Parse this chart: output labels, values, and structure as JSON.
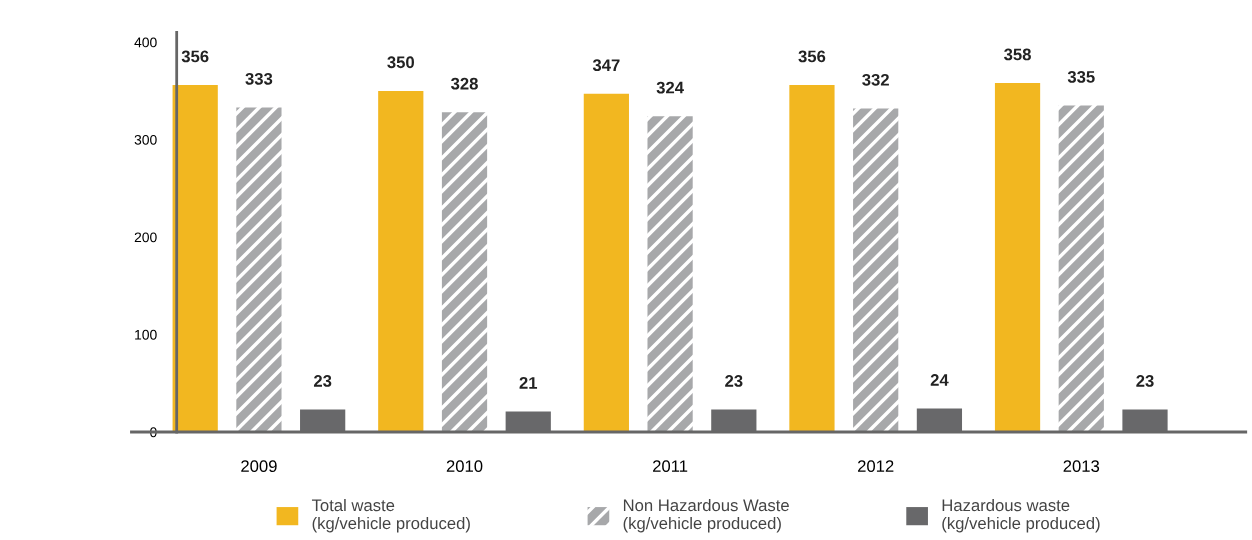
{
  "chart_data": {
    "type": "bar",
    "categories": [
      "2009",
      "2010",
      "2011",
      "2012",
      "2013"
    ],
    "series": [
      {
        "name": "Total waste\n(kg/vehicle produced)",
        "color": "#f2b720",
        "values": [
          356,
          350,
          347,
          356,
          358
        ]
      },
      {
        "name": "Non Hazardous Waste\n(kg/vehicle produced)",
        "color": "#a7a8aa",
        "values": [
          333,
          328,
          324,
          332,
          335
        ]
      },
      {
        "name": "Hazardous waste\n(kg/vehicle produced)",
        "color": "#68686a",
        "values": [
          23,
          21,
          23,
          24,
          23
        ]
      }
    ],
    "ylim": [
      0,
      410
    ],
    "yticks": [
      0,
      100,
      200,
      300,
      400
    ],
    "data_labels": true,
    "grid": false,
    "legend": "bottom"
  }
}
